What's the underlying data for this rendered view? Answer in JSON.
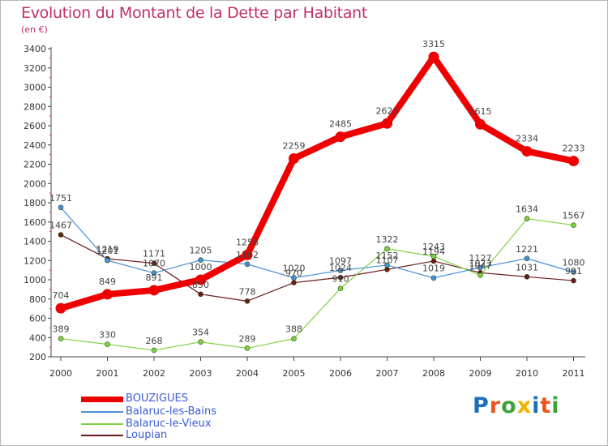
{
  "title": "Evolution du Montant de la Dette par Habitant",
  "unit": "(en €)",
  "logo": {
    "text": "Proxiti",
    "letter_colors": [
      "#1d6fb8",
      "#e8581c",
      "#3aa33a",
      "#f0b400",
      "#1d6fb8",
      "#e8581c",
      "#3aa33a"
    ]
  },
  "chart_data": {
    "type": "line",
    "title": "Evolution du Montant de la Dette par Habitant",
    "xlabel": "",
    "ylabel": "(en €)",
    "x": [
      "2000",
      "2001",
      "2002",
      "2003",
      "2004",
      "2005",
      "2006",
      "2007",
      "2008",
      "2009",
      "2010",
      "2011"
    ],
    "ylim": [
      200,
      3400
    ],
    "yticks": [
      200,
      400,
      600,
      800,
      1000,
      1200,
      1400,
      1600,
      1800,
      2000,
      2200,
      2400,
      2600,
      2800,
      3000,
      3200,
      3400
    ],
    "grid": false,
    "legend_position": "bottom-left",
    "series": [
      {
        "name": "BOUZIGUES",
        "color": "#ee0000",
        "values": [
          704,
          849,
          891,
          1000,
          1258,
          2259,
          2485,
          2623,
          3315,
          2615,
          2334,
          2233
        ],
        "labels": [
          "704",
          "849",
          "891",
          "1000",
          "1258",
          "2259",
          "2485",
          "2623",
          "3315",
          "2615",
          "2334",
          "2233"
        ]
      },
      {
        "name": "Balaruc-les-Bains",
        "color": "#4a90d9",
        "values": [
          1751,
          1201,
          1070,
          1205,
          1162,
          1020,
          1097,
          1152,
          1019,
          1127,
          1221,
          1080
        ],
        "labels": [
          "1751",
          "1201",
          "1070",
          "1205",
          "1162",
          "1020",
          "1097",
          "1152",
          "1019",
          "1127",
          "1221",
          "1080"
        ]
      },
      {
        "name": "Balaruc-le-Vieux",
        "color": "#7fd142",
        "values": [
          389,
          330,
          268,
          354,
          289,
          388,
          910,
          1322,
          1243,
          1047,
          1634,
          1567
        ],
        "labels": [
          "389",
          "330",
          "268",
          "354",
          "289",
          "388",
          "910",
          "1322",
          "1243",
          "1047",
          "1634",
          "1567"
        ]
      },
      {
        "name": "Loupian",
        "color": "#6b1a1a",
        "values": [
          1467,
          1219,
          1171,
          850,
          778,
          970,
          1024,
          1107,
          1194,
          1073,
          1031,
          991
        ],
        "labels": [
          "1467",
          "1219",
          "1171",
          "850",
          "778",
          "970",
          "1024",
          "1107",
          "1194",
          "1073",
          "1031",
          "991"
        ]
      }
    ]
  }
}
